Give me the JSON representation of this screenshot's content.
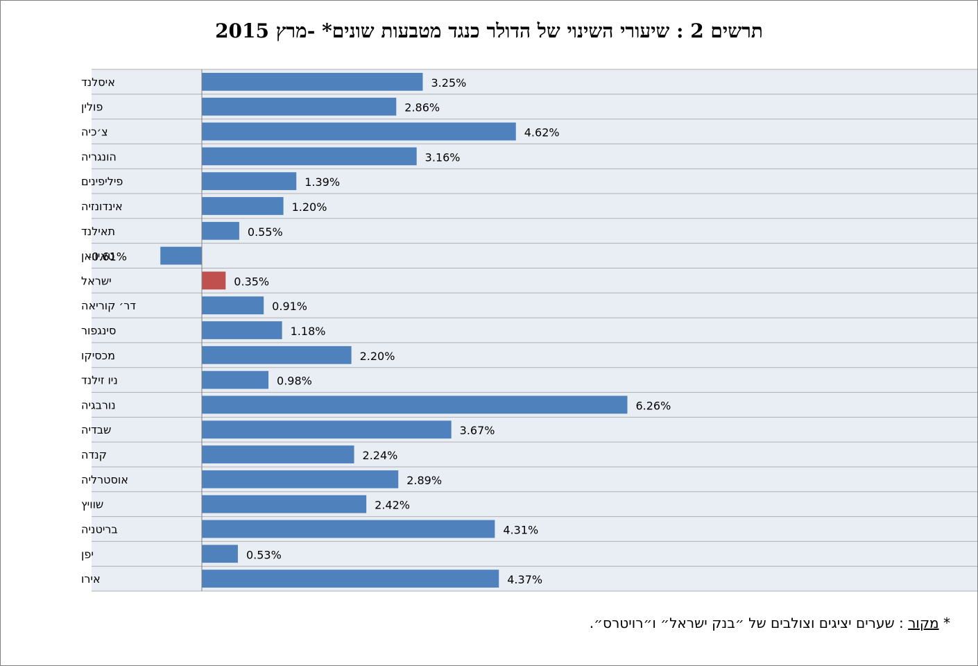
{
  "chart_data": {
    "type": "bar",
    "orientation": "horizontal",
    "title": "תרשים 2 : שיעורי השינוי של הדולר כנגד מטבעות שונים* -מרץ  2015",
    "xlim": [
      -1.5,
      7.0
    ],
    "grid": true,
    "legend": "none",
    "value_format": "percent_2dp",
    "categories": [
      "איסלנד",
      "פולין",
      "צ׳כיה",
      "הונגריה",
      "פיליפינים",
      "אינדונזיה",
      "תאילנד",
      "טאיוואן",
      "ישראל",
      "דר׳ קוריאה",
      "סינגפור",
      "מכסיקו",
      "ניו זילנד",
      "נורבגיה",
      "שבדיה",
      "קנדה",
      "אוסטרליה",
      "שוויץ",
      "בריטניה",
      "יפן",
      "אירו"
    ],
    "values": [
      3.25,
      2.86,
      4.62,
      3.16,
      1.39,
      1.2,
      0.55,
      -0.61,
      0.35,
      0.91,
      1.18,
      2.2,
      0.98,
      6.26,
      3.67,
      2.24,
      2.89,
      2.42,
      4.31,
      0.53,
      4.37
    ],
    "value_labels": [
      "3.25%",
      "2.86%",
      "4.62%",
      "3.16%",
      "1.39%",
      "1.20%",
      "0.55%",
      "-0.61%",
      "0.35%",
      "0.91%",
      "1.18%",
      "2.20%",
      "0.98%",
      "6.26%",
      "3.67%",
      "2.24%",
      "2.89%",
      "2.42%",
      "4.31%",
      "0.53%",
      "4.37%"
    ],
    "highlight_category": "ישראל",
    "colors": {
      "bar": "#4F81BD",
      "highlight": "#C0504D",
      "band": "#E9EDF4",
      "gridline": "#B0B0B0",
      "axis": "#808080"
    }
  },
  "footnote": {
    "marker": "*",
    "source_word": "מקור",
    "text": ": שערים יציגים וצולבים של ״בנק ישראל״ ו״רויטרס״."
  }
}
